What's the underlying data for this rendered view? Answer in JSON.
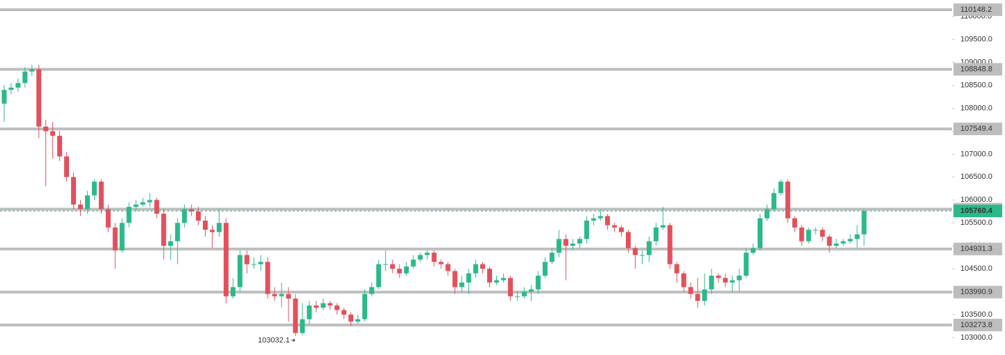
{
  "chart_data": {
    "type": "candlestick",
    "up_color": "#2cb98a",
    "down_color": "#e2505d",
    "level_color": "#bdbdbd",
    "ylim": [
      102620,
      110360
    ],
    "yticks": [
      {
        "value": 103000,
        "label": "103000.0"
      },
      {
        "value": 103500,
        "label": "103500.0"
      },
      {
        "value": 104000,
        "label": "104000.0"
      },
      {
        "value": 104500,
        "label": "104500.0"
      },
      {
        "value": 105000,
        "label": "105000.0"
      },
      {
        "value": 105500,
        "label": "105500.0"
      },
      {
        "value": 106000,
        "label": "106000.0"
      },
      {
        "value": 106500,
        "label": "106500.0"
      },
      {
        "value": 107000,
        "label": "107000.0"
      },
      {
        "value": 107500,
        "label": "107500.0"
      },
      {
        "value": 108000,
        "label": "108000.0"
      },
      {
        "value": 108500,
        "label": "108500.0"
      },
      {
        "value": 109000,
        "label": "109000.0"
      },
      {
        "value": 109500,
        "label": "109500.0"
      },
      {
        "value": 110000,
        "label": "110000.0"
      }
    ],
    "levels": [
      110148.2,
      108848.8,
      107549.4,
      105800.2,
      104931.3,
      103990.9,
      103273.8
    ],
    "open": [
      108100,
      108400,
      108450,
      108550,
      108800,
      108850,
      107600,
      107500,
      107400,
      106950,
      106500,
      105900,
      105800,
      106100,
      106400,
      105800,
      105400,
      104900,
      105500,
      105850,
      105900,
      105950,
      106000,
      105700,
      105000,
      105100,
      105500,
      105800,
      105750,
      105550,
      105350,
      105300,
      105500,
      103900,
      104100,
      104800,
      104600,
      104600,
      104650,
      103950,
      103900,
      103950,
      103850,
      103100,
      103400,
      103700,
      103650,
      103750,
      103700,
      103600,
      103500,
      103350,
      103400,
      103950,
      104100,
      104600,
      104600,
      104500,
      104400,
      104550,
      104700,
      104800,
      104850,
      104650,
      104600,
      104450,
      104100,
      104200,
      104400,
      104600,
      104500,
      104200,
      104250,
      104300,
      103900,
      103900,
      104000,
      104050,
      104350,
      104650,
      104850,
      105150,
      105000,
      105050,
      105150,
      105550,
      105600,
      105650,
      105450,
      105400,
      105300,
      104950,
      104800,
      104800,
      105100,
      105400,
      105450,
      104600,
      104400,
      104100,
      103950,
      103800,
      104050,
      104350,
      104300,
      104200,
      104250,
      104350,
      104850,
      104950,
      105600,
      105800,
      106150,
      106400,
      105600,
      105400,
      105100,
      105350,
      105350,
      105200,
      105000,
      105050,
      105100,
      105150,
      105250
    ],
    "high": [
      108500,
      108550,
      108650,
      108900,
      108950,
      108950,
      107750,
      107700,
      107500,
      107050,
      106600,
      106000,
      106200,
      106450,
      106450,
      105900,
      105500,
      105600,
      105950,
      106000,
      106050,
      106150,
      106050,
      105800,
      105250,
      105600,
      105900,
      105900,
      105850,
      105650,
      105450,
      105800,
      105600,
      104300,
      104900,
      104900,
      104750,
      104800,
      104750,
      104100,
      104200,
      104100,
      103950,
      103750,
      103800,
      103800,
      103850,
      103800,
      103750,
      103650,
      103550,
      103500,
      104050,
      104200,
      104700,
      104900,
      104700,
      104600,
      104650,
      104800,
      104850,
      104900,
      104900,
      104700,
      104650,
      104500,
      104350,
      104500,
      104700,
      104650,
      104550,
      104350,
      104400,
      104350,
      104000,
      104100,
      104150,
      104450,
      104750,
      104950,
      105350,
      105250,
      105150,
      105200,
      105650,
      105700,
      105800,
      105700,
      105500,
      105450,
      105350,
      105000,
      104900,
      105200,
      105500,
      105850,
      105500,
      104650,
      104450,
      104200,
      104300,
      104400,
      104500,
      104400,
      104400,
      104350,
      104500,
      104950,
      105050,
      105700,
      105900,
      106250,
      106450,
      106450,
      105650,
      105450,
      105400,
      105400,
      105400,
      105250,
      105150,
      105150,
      105250,
      105450,
      105800
    ],
    "low": [
      107700,
      108300,
      108350,
      108450,
      108700,
      107350,
      106300,
      106900,
      106850,
      106400,
      105800,
      105650,
      105700,
      106000,
      105700,
      105300,
      104500,
      104850,
      105400,
      105750,
      105850,
      105850,
      105600,
      104700,
      104700,
      104600,
      105400,
      105650,
      105450,
      105200,
      104950,
      105200,
      103750,
      103850,
      104000,
      104400,
      104500,
      104450,
      103850,
      103800,
      103650,
      103350,
      103032.1,
      103050,
      103300,
      103550,
      103600,
      103600,
      103500,
      103400,
      103250,
      103300,
      103350,
      103900,
      104050,
      104450,
      104400,
      104300,
      104350,
      104500,
      104650,
      104700,
      104550,
      104500,
      104350,
      103950,
      104000,
      103950,
      104300,
      104400,
      104100,
      104150,
      104200,
      103800,
      103800,
      103850,
      103800,
      103950,
      104300,
      104600,
      104750,
      104250,
      104900,
      104950,
      105050,
      105450,
      105550,
      105350,
      105300,
      105200,
      104850,
      104500,
      104600,
      104650,
      105000,
      105350,
      104500,
      104200,
      104000,
      103850,
      103650,
      103700,
      103950,
      104200,
      104100,
      104000,
      104000,
      104300,
      104800,
      104900,
      105550,
      105750,
      106100,
      105500,
      105300,
      105000,
      105050,
      105250,
      105100,
      104850,
      104950,
      105000,
      105050,
      104950,
      105000
    ],
    "close": [
      108400,
      108450,
      108550,
      108800,
      108850,
      107600,
      107500,
      107400,
      106950,
      106500,
      105900,
      105800,
      106100,
      106400,
      105800,
      105400,
      104900,
      105500,
      105850,
      105900,
      105950,
      106000,
      105700,
      105000,
      105100,
      105500,
      105800,
      105750,
      105550,
      105350,
      105300,
      105500,
      103900,
      104100,
      104800,
      104600,
      104600,
      104650,
      103950,
      103900,
      103950,
      103850,
      103100,
      103400,
      103700,
      103650,
      103750,
      103700,
      103600,
      103500,
      103350,
      103400,
      103950,
      104100,
      104600,
      104600,
      104500,
      104400,
      104550,
      104700,
      104800,
      104850,
      104650,
      104600,
      104450,
      104100,
      104200,
      104400,
      104600,
      104500,
      104200,
      104250,
      104300,
      103900,
      103900,
      104000,
      104050,
      104350,
      104650,
      104850,
      105150,
      105000,
      105050,
      105150,
      105550,
      105600,
      105650,
      105450,
      105400,
      105300,
      104950,
      104800,
      104800,
      105100,
      105400,
      105450,
      104600,
      104400,
      104100,
      103950,
      103800,
      104050,
      104350,
      104300,
      104200,
      104250,
      104350,
      104850,
      104950,
      105600,
      105800,
      106150,
      106400,
      105600,
      105400,
      105100,
      105350,
      105350,
      105200,
      105000,
      105050,
      105100,
      105150,
      105250,
      105760.4
    ]
  }
}
